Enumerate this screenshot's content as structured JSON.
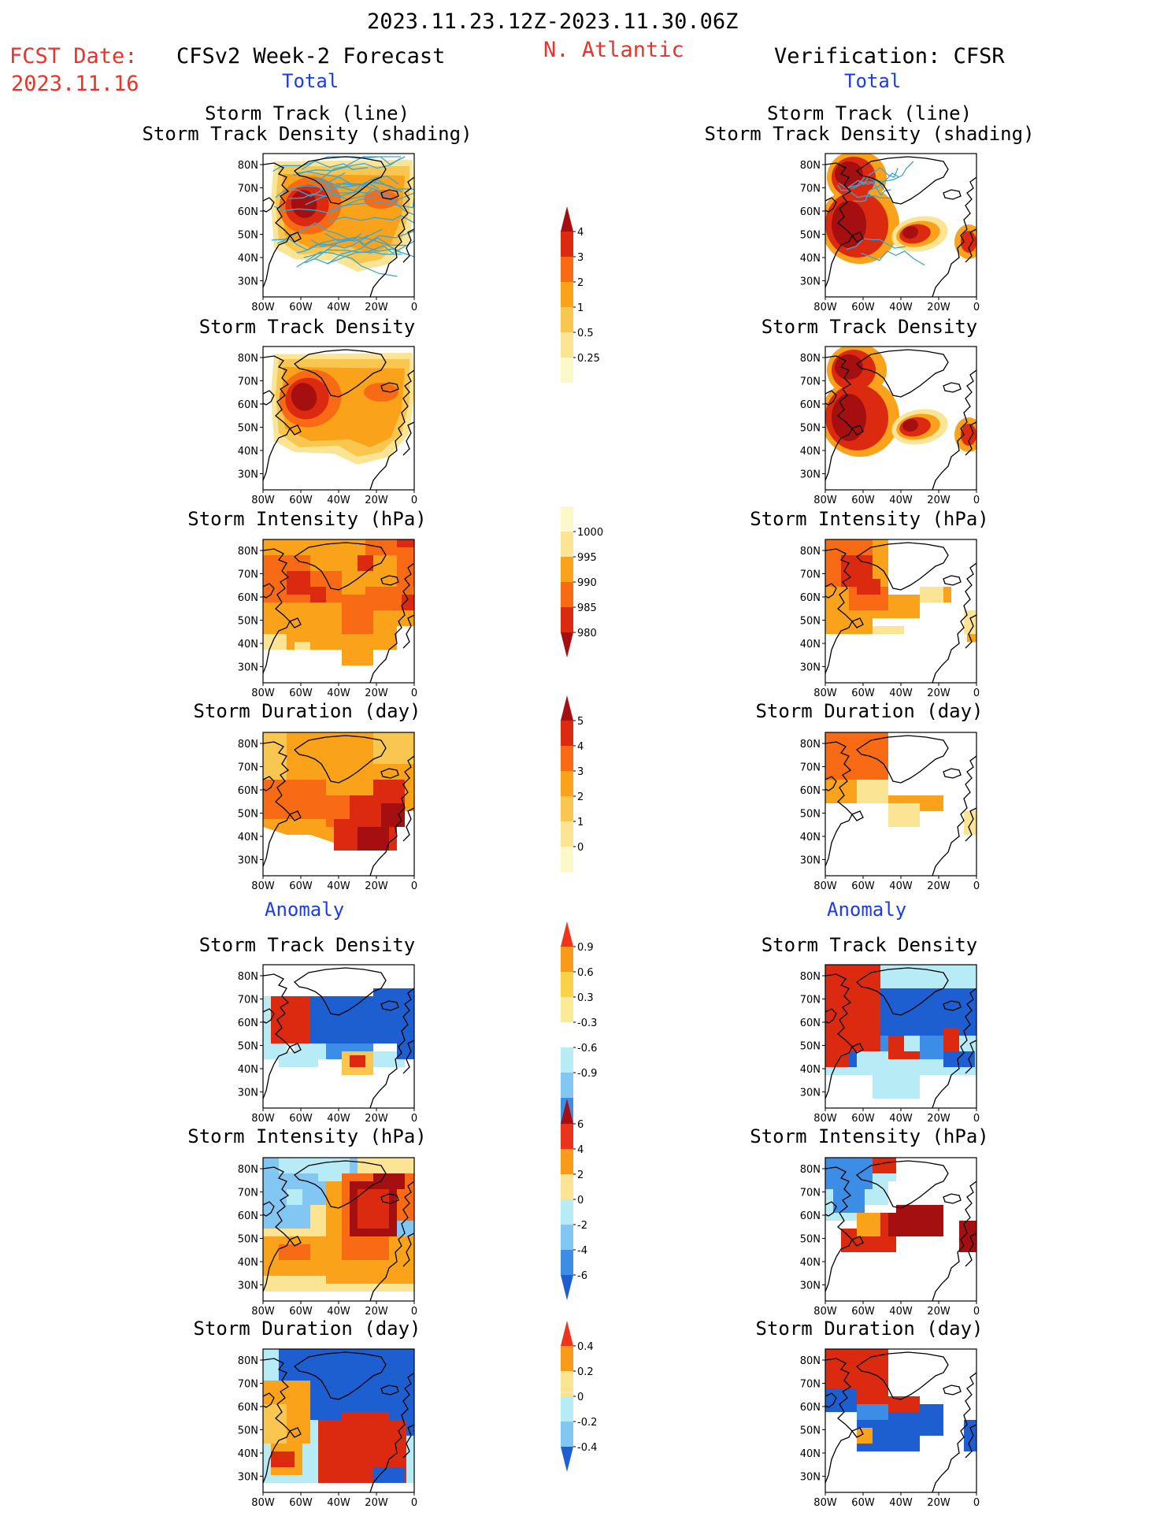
{
  "header": {
    "date_range": "2023.11.23.12Z-2023.11.30.06Z",
    "fcst_label": "FCST Date:",
    "fcst_date": "2023.11.16",
    "region": "N. Atlantic",
    "left_title": "CFSv2 Week-2 Forecast",
    "right_title": "Verification: CFSR"
  },
  "sections": {
    "total": "Total",
    "anomaly": "Anomaly"
  },
  "axes": {
    "lat_labels": [
      "80N",
      "70N",
      "60N",
      "50N",
      "40N",
      "30N"
    ],
    "lon_labels": [
      "80W",
      "60W",
      "40W",
      "20W",
      "0"
    ]
  },
  "panels": {
    "total_track": {
      "title1": "Storm Track (line)",
      "title2": "Storm Track Density (shading)"
    },
    "total_density": {
      "title": "Storm Track Density"
    },
    "total_intensity": {
      "title": "Storm Intensity (hPa)"
    },
    "total_duration": {
      "title": "Storm Duration (day)"
    },
    "anom_density": {
      "title": "Storm Track Density"
    },
    "anom_intensity": {
      "title": "Storm Intensity (hPa)"
    },
    "anom_duration": {
      "title": "Storm Duration (day)"
    }
  },
  "colorbars": [
    {
      "id": "density",
      "labels": [
        "4",
        "3",
        "2",
        "1",
        "0.5",
        "0.25"
      ],
      "colors": [
        "#a50f0f",
        "#dc2a10",
        "#f86a13",
        "#f9a21a",
        "#f9c650",
        "#fbe493",
        "#fdf8c8"
      ],
      "arrows": "top"
    },
    {
      "id": "intensity",
      "labels": [
        "1000",
        "995",
        "990",
        "985",
        "980"
      ],
      "colors": [
        "#fdf8c8",
        "#fbe493",
        "#f9a21a",
        "#f86a13",
        "#dc2a10",
        "#a50f0f"
      ],
      "arrows": "bottom"
    },
    {
      "id": "duration",
      "labels": [
        "5",
        "4",
        "3",
        "2",
        "1",
        "0"
      ],
      "colors": [
        "#a50f0f",
        "#dc2a10",
        "#f86a13",
        "#f9a21a",
        "#f9c650",
        "#fbe493",
        "#fdf8c8"
      ],
      "arrows": "top"
    },
    {
      "id": "anom_density",
      "labels": [
        "0.9",
        "0.6",
        "0.3",
        "-0.3",
        "-0.6",
        "-0.9"
      ],
      "colors": [
        "#f0331a",
        "#f89a1a",
        "#f9d24a",
        "#fbeb96",
        "#ffffff",
        "#b7ecf7",
        "#82c6f4",
        "#3b8de6",
        "#1d5fd0"
      ],
      "arrows": "both"
    },
    {
      "id": "anom_intensity",
      "labels": [
        "6",
        "4",
        "2",
        "0",
        "-2",
        "-4",
        "-6"
      ],
      "colors": [
        "#a50f0f",
        "#e8341b",
        "#f89a1a",
        "#fbe493",
        "#b7ecf7",
        "#82c6f4",
        "#3b8de6",
        "#1d5fd0"
      ],
      "arrows": "both"
    },
    {
      "id": "anom_duration",
      "labels": [
        "0.4",
        "0.2",
        "0",
        "-0.2",
        "-0.4"
      ],
      "colors": [
        "#f0331a",
        "#f89a1a",
        "#fbe493",
        "#b7ecf7",
        "#82c6f4",
        "#1d5fd0"
      ],
      "arrows": "both"
    }
  ],
  "fills": {
    "pale": "#fdf8c8",
    "light": "#fbe493",
    "yellow": "#f9c650",
    "orange": "#f9a21a",
    "dorange": "#f86a13",
    "red": "#dc2a10",
    "dred": "#a50f0f",
    "lblue": "#b7ecf7",
    "mblue": "#82c6f4",
    "blue": "#3b8de6",
    "dblue": "#1d5fd0",
    "track": "#3aa6d8"
  }
}
